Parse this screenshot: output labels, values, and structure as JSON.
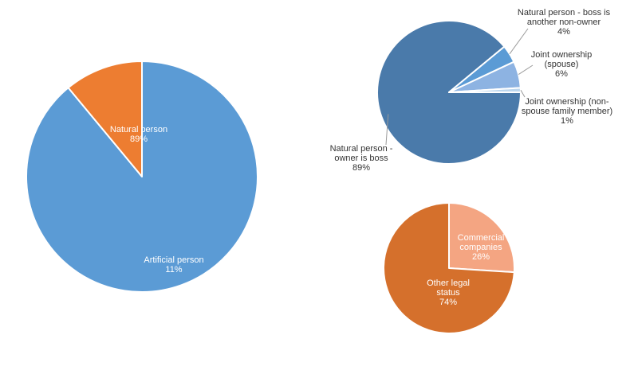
{
  "chart_data": [
    {
      "type": "pie",
      "slices": [
        {
          "label": "Natural person",
          "value": 89,
          "value_label": "89%",
          "color": "#5b9bd5",
          "label_color": "#ffffff"
        },
        {
          "label": "Artificial person",
          "value": 11,
          "value_label": "11%",
          "color": "#ed7d31",
          "label_color": "#ffffff"
        }
      ]
    },
    {
      "type": "pie",
      "slices": [
        {
          "label": "Natural person - owner is boss",
          "value": 89,
          "value_label": "89%",
          "color": "#4a7aaa",
          "label_color": "#333333"
        },
        {
          "label": "Natural person - boss is another non-owner",
          "value": 4,
          "value_label": "4%",
          "color": "#5b9bd5",
          "label_color": "#333333"
        },
        {
          "label": "Joint ownership (spouse)",
          "value": 6,
          "value_label": "6%",
          "color": "#8db3e2",
          "label_color": "#333333"
        },
        {
          "label": "Joint ownership (non-spouse family member)",
          "value": 1,
          "value_label": "1%",
          "color": "#bdd7ee",
          "label_color": "#333333"
        }
      ]
    },
    {
      "type": "pie",
      "slices": [
        {
          "label": "Commercial companies",
          "value": 26,
          "value_label": "26%",
          "color": "#f4a582",
          "label_color": "#ffffff"
        },
        {
          "label": "Other legal status",
          "value": 74,
          "value_label": "74%",
          "color": "#d5702c",
          "label_color": "#ffffff"
        }
      ]
    }
  ]
}
